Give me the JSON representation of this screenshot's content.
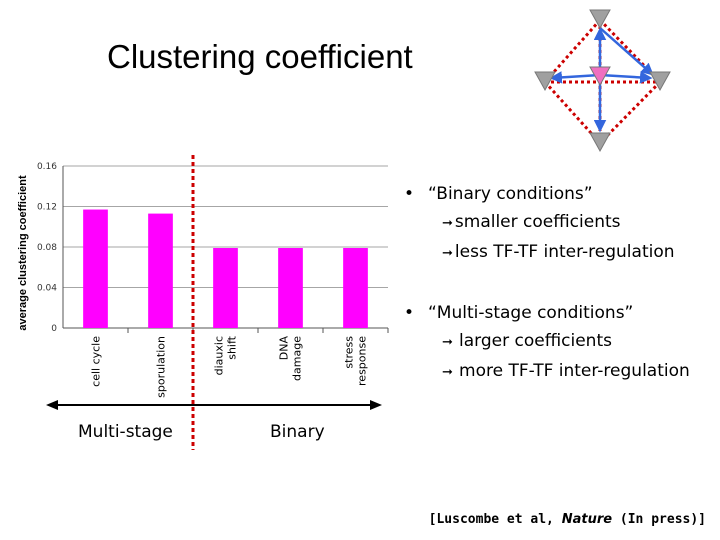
{
  "slide": {
    "title": "Clustering coefficient",
    "bullets": [
      {
        "head": "“Binary conditions”",
        "subs": [
          "smaller coefficients",
          "less TF-TF inter-regulation"
        ]
      },
      {
        "head": "“Multi-stage conditions”",
        "subs": [
          "larger coefficients",
          "more TF-TF inter-regulation"
        ]
      }
    ],
    "stage_labels": {
      "multi": "Multi-stage",
      "binary": "Binary"
    },
    "citation": {
      "pre": "[Luscombe et al, ",
      "journal": "Nature",
      "post": " (In press)]"
    }
  },
  "chart_data": {
    "type": "bar",
    "ylabel": "average clustering coefficient",
    "categories": [
      "cell cycle",
      "sporulation",
      "diauxic shift",
      "DNA damage",
      "stress response"
    ],
    "category_lines": [
      [
        "cell cycle"
      ],
      [
        "sporulation"
      ],
      [
        "diauxic",
        "shift"
      ],
      [
        "DNA",
        "damage"
      ],
      [
        "stress",
        "response"
      ]
    ],
    "values": [
      0.117,
      0.113,
      0.079,
      0.079,
      0.079
    ],
    "yticks": [
      0,
      0.04,
      0.08,
      0.12,
      0.16
    ],
    "ytick_labels": [
      "0",
      "0.04",
      "0.08",
      "0.12",
      "0.16"
    ],
    "ylim": [
      0,
      0.16
    ],
    "groups": [
      {
        "name": "Multi-stage",
        "categories": [
          "cell cycle",
          "sporulation"
        ]
      },
      {
        "name": "Binary",
        "categories": [
          "diauxic shift",
          "DNA damage",
          "stress response"
        ]
      }
    ],
    "grid": true,
    "colors": {
      "bar": "#ff00ff",
      "divider": "#cc0000",
      "grid": "#888888"
    }
  },
  "diagram": {
    "colors": {
      "node": "#a0a0a0",
      "center": "#f070c0",
      "dotted": "#cc0000",
      "arrow": "#3366dd"
    }
  }
}
